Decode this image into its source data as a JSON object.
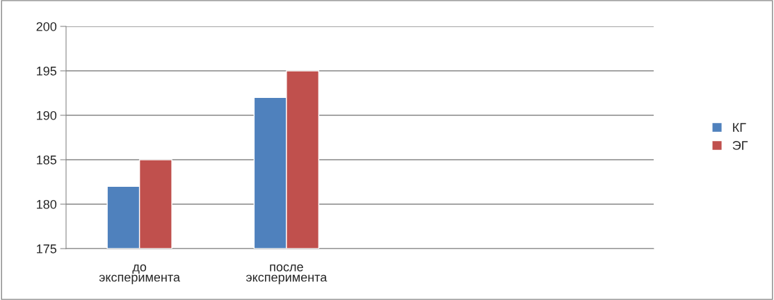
{
  "chart_data": {
    "type": "bar",
    "categories": [
      "до эксперимента",
      "после эксперимента",
      null,
      null
    ],
    "series": [
      {
        "name": "КГ",
        "color": "#4f81bd",
        "values": [
          182,
          192,
          null,
          null
        ]
      },
      {
        "name": "ЭГ",
        "color": "#c0504d",
        "values": [
          185,
          195,
          null,
          null
        ]
      }
    ],
    "ylim": [
      175,
      200
    ],
    "yticks": [
      175,
      180,
      185,
      190,
      195,
      200
    ],
    "grid": "y",
    "legend": "right"
  }
}
